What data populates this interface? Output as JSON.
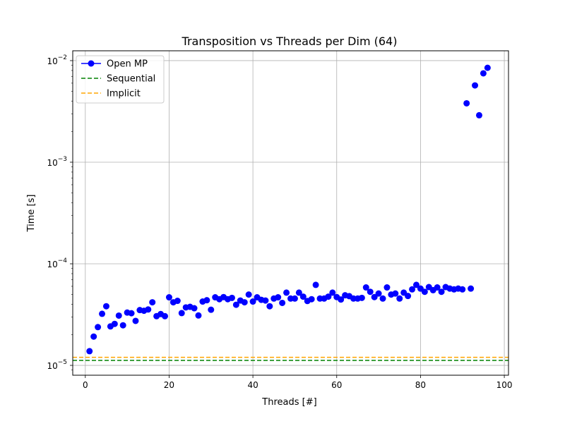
{
  "chart_data": {
    "type": "scatter",
    "title": "Transposition vs Threads per Dim (64)",
    "xlabel": "Threads [#]",
    "ylabel": "Time [s]",
    "xlim": [
      -3,
      101
    ],
    "ylim": [
      8e-06,
      0.0125
    ],
    "yscale": "log",
    "grid": true,
    "legend_position": "upper-left",
    "x_ticks": [
      0,
      20,
      40,
      60,
      80,
      100
    ],
    "x_tick_labels": [
      "0",
      "20",
      "40",
      "60",
      "80",
      "100"
    ],
    "y_ticks": [
      1e-05,
      0.0001,
      0.001,
      0.01
    ],
    "y_tick_labels": [
      {
        "base": "10",
        "exp": "−5"
      },
      {
        "base": "10",
        "exp": "−4"
      },
      {
        "base": "10",
        "exp": "−3"
      },
      {
        "base": "10",
        "exp": "−2"
      }
    ],
    "series": [
      {
        "name": "Open MP",
        "kind": "markers",
        "color": "#0000ff",
        "x": [
          1,
          2,
          3,
          4,
          5,
          6,
          7,
          8,
          9,
          10,
          11,
          12,
          13,
          14,
          15,
          16,
          17,
          18,
          19,
          20,
          21,
          22,
          23,
          24,
          25,
          26,
          27,
          28,
          29,
          30,
          31,
          32,
          33,
          34,
          35,
          36,
          37,
          38,
          39,
          40,
          41,
          42,
          43,
          44,
          45,
          46,
          47,
          48,
          49,
          50,
          51,
          52,
          53,
          54,
          55,
          56,
          57,
          58,
          59,
          60,
          61,
          62,
          63,
          64,
          65,
          66,
          67,
          68,
          69,
          70,
          71,
          72,
          73,
          74,
          75,
          76,
          77,
          78,
          79,
          80,
          81,
          82,
          83,
          84,
          85,
          86,
          87,
          88,
          89,
          90,
          92,
          91,
          93,
          94,
          95,
          96
        ],
        "y": [
          1.38e-05,
          1.92e-05,
          2.38e-05,
          3.22e-05,
          3.82e-05,
          2.42e-05,
          2.56e-05,
          3.09e-05,
          2.48e-05,
          3.31e-05,
          3.26e-05,
          2.74e-05,
          3.5e-05,
          3.45e-05,
          3.55e-05,
          4.18e-05,
          3.05e-05,
          3.2e-05,
          3.05e-05,
          4.68e-05,
          4.18e-05,
          4.32e-05,
          3.27e-05,
          3.72e-05,
          3.77e-05,
          3.65e-05,
          3.1e-05,
          4.25e-05,
          4.38e-05,
          3.53e-05,
          4.68e-05,
          4.48e-05,
          4.7e-05,
          4.48e-05,
          4.62e-05,
          3.95e-05,
          4.35e-05,
          4.18e-05,
          4.98e-05,
          4.25e-05,
          4.68e-05,
          4.42e-05,
          4.35e-05,
          3.82e-05,
          4.55e-05,
          4.68e-05,
          4.12e-05,
          5.2e-05,
          4.55e-05,
          4.55e-05,
          5.2e-05,
          4.75e-05,
          4.3e-05,
          4.48e-05,
          6.2e-05,
          4.55e-05,
          4.55e-05,
          4.75e-05,
          5.2e-05,
          4.7e-05,
          4.45e-05,
          4.9e-05,
          4.8e-05,
          4.55e-05,
          4.55e-05,
          4.62e-05,
          5.85e-05,
          5.3e-05,
          4.7e-05,
          5.1e-05,
          4.55e-05,
          5.85e-05,
          4.98e-05,
          5.1e-05,
          4.55e-05,
          5.2e-05,
          4.82e-05,
          5.6e-05,
          6.2e-05,
          5.7e-05,
          5.3e-05,
          5.9e-05,
          5.5e-05,
          5.85e-05,
          5.3e-05,
          5.9e-05,
          5.7e-05,
          5.6e-05,
          5.7e-05,
          5.6e-05,
          5.7e-05,
          0.0038,
          0.0057,
          0.0029,
          0.0075,
          0.0085
        ]
      },
      {
        "name": "Sequential",
        "kind": "hline",
        "style": "dashed",
        "color": "#008000",
        "value": 1.12e-05
      },
      {
        "name": "Implicit",
        "kind": "hline",
        "style": "dashed",
        "color": "#ffa500",
        "value": 1.2e-05
      }
    ]
  }
}
